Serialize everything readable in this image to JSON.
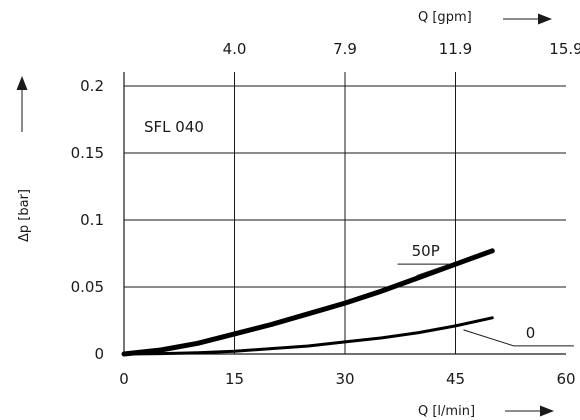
{
  "chart_data": {
    "type": "line",
    "annotation": "SFL 040",
    "xlabel": "Q [l/min]",
    "x2label": "Q [gpm]",
    "ylabel": "Δp [bar]",
    "xlim": [
      0,
      60
    ],
    "ylim": [
      0,
      0.2
    ],
    "x_ticks": [
      {
        "value": 0,
        "label": "0"
      },
      {
        "value": 15,
        "label": "15"
      },
      {
        "value": 30,
        "label": "30"
      },
      {
        "value": 45,
        "label": "45"
      },
      {
        "value": 60,
        "label": "60"
      }
    ],
    "x2_ticks": [
      {
        "value": 15,
        "label": "4.0"
      },
      {
        "value": 30,
        "label": "7.9"
      },
      {
        "value": 45,
        "label": "11.9"
      },
      {
        "value": 60,
        "label": "15.9"
      }
    ],
    "y_ticks": [
      {
        "value": 0,
        "label": "0"
      },
      {
        "value": 0.05,
        "label": "0.05"
      },
      {
        "value": 0.1,
        "label": "0.1"
      },
      {
        "value": 0.15,
        "label": "0.15"
      },
      {
        "value": 0.2,
        "label": "0.2"
      }
    ],
    "grid": true,
    "series": [
      {
        "name": "50P",
        "stroke_width": 5,
        "x": [
          0,
          5,
          10,
          15,
          20,
          25,
          30,
          35,
          40,
          45,
          50
        ],
        "y": [
          0,
          0.003,
          0.008,
          0.015,
          0.022,
          0.03,
          0.038,
          0.047,
          0.057,
          0.067,
          0.077
        ],
        "label_at": {
          "x": 38.5,
          "y": 0.073
        }
      },
      {
        "name": "0",
        "stroke_width": 3,
        "x": [
          0,
          5,
          10,
          15,
          20,
          25,
          30,
          35,
          40,
          45,
          50
        ],
        "y": [
          0,
          0.0003,
          0.001,
          0.002,
          0.004,
          0.006,
          0.009,
          0.012,
          0.016,
          0.021,
          0.027
        ],
        "label_at": {
          "x": 54,
          "y": 0.012
        }
      }
    ]
  }
}
